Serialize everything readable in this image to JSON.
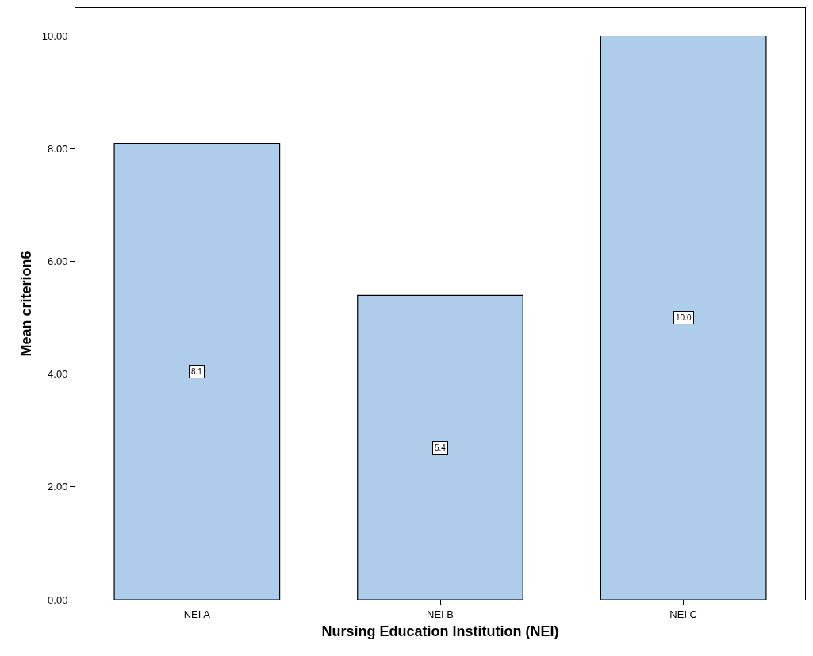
{
  "chart_data": {
    "type": "bar",
    "xlabel": "Nursing Education Institution (NEI)",
    "ylabel": "Mean criterion6",
    "categories": [
      "NEI A",
      "NEI B",
      "NEI C"
    ],
    "values": [
      8.1,
      5.4,
      10.0
    ],
    "value_labels": [
      "8.1",
      "5.4",
      "10.0"
    ],
    "color": "#aecdeb",
    "ylim": [
      0,
      10.5
    ],
    "yticks": [
      {
        "value": 0,
        "label": "0.00"
      },
      {
        "value": 2,
        "label": "2.00"
      },
      {
        "value": 4,
        "label": "4.00"
      },
      {
        "value": 6,
        "label": "6.00"
      },
      {
        "value": 8,
        "label": "8.00"
      },
      {
        "value": 10,
        "label": "10.00"
      }
    ],
    "legend": false
  }
}
